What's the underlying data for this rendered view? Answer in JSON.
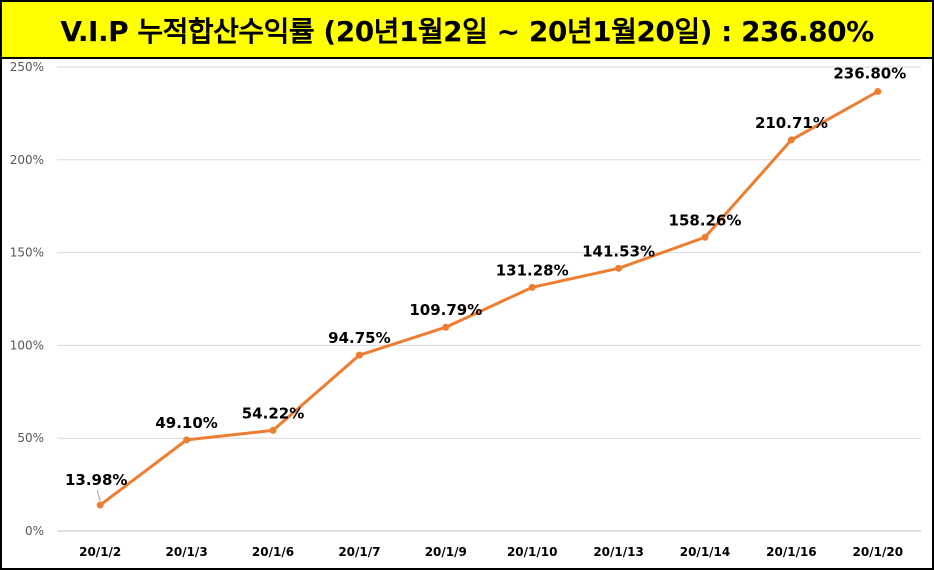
{
  "title": "V.I.P 누적합산수익률 (20년1월2일 ~ 20년1월20일) : 236.80%",
  "chart_data": {
    "type": "line",
    "title": "V.I.P 누적합산수익률 (20년1월2일 ~ 20년1월20일) : 236.80%",
    "categories": [
      "20/1/2",
      "20/1/3",
      "20/1/6",
      "20/1/7",
      "20/1/9",
      "20/1/10",
      "20/1/13",
      "20/1/14",
      "20/1/16",
      "20/1/20"
    ],
    "series": [
      {
        "values": [
          13.98,
          49.1,
          54.22,
          94.75,
          109.79,
          131.28,
          141.53,
          158.26,
          210.71,
          236.8
        ],
        "labels": [
          "13.98%",
          "49.10%",
          "54.22%",
          "94.75%",
          "109.79%",
          "131.28%",
          "141.53%",
          "158.26%",
          "210.71%",
          "236.80%"
        ],
        "color": "#ed7d31"
      }
    ],
    "yticks": [
      "0%",
      "50%",
      "100%",
      "150%",
      "200%",
      "250%"
    ],
    "ylim": [
      0,
      250
    ],
    "grid": true,
    "legend": "none",
    "xlabel": "",
    "ylabel": ""
  }
}
